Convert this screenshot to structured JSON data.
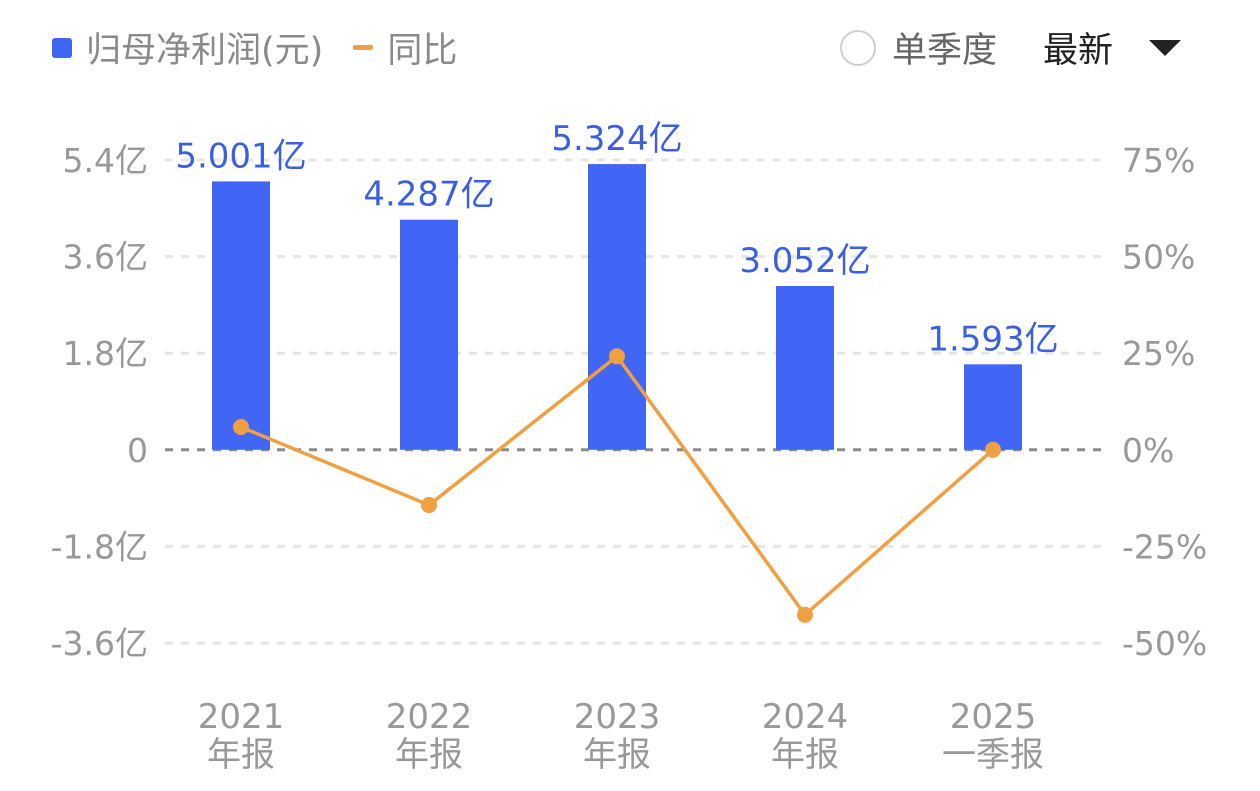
{
  "legend": {
    "bar_label": "归母净利润(元)",
    "line_label": "同比"
  },
  "controls": {
    "single_quarter": "单季度",
    "period": "最新"
  },
  "colors": {
    "bar": "#4166f5",
    "line": "#f0a040",
    "axis_text": "#999999",
    "label": "#3a5fe0"
  },
  "chart_data": {
    "type": "bar+line",
    "categories": [
      [
        "2021",
        "年报"
      ],
      [
        "2022",
        "年报"
      ],
      [
        "2023",
        "年报"
      ],
      [
        "2024",
        "年报"
      ],
      [
        "2025",
        "一季报"
      ]
    ],
    "series": [
      {
        "name": "归母净利润(元)",
        "type": "bar",
        "axis": "left",
        "values": [
          5.001,
          4.287,
          5.324,
          3.052,
          1.593
        ],
        "labels": [
          "5.001亿",
          "4.287亿",
          "5.324亿",
          "3.052亿",
          "1.593亿"
        ]
      },
      {
        "name": "同比",
        "type": "line",
        "axis": "right",
        "values": [
          5.9,
          -14.3,
          24.2,
          -42.7,
          0
        ]
      }
    ],
    "left_axis": {
      "ticks": [
        5.4,
        3.6,
        1.8,
        0,
        -1.8,
        -3.6
      ],
      "tick_labels": [
        "5.4亿",
        "3.6亿",
        "1.8亿",
        "0",
        "-1.8亿",
        "-3.6亿"
      ],
      "range": [
        -3.6,
        5.4
      ]
    },
    "right_axis": {
      "ticks": [
        75,
        50,
        25,
        0,
        -25,
        -50
      ],
      "tick_labels": [
        "75%",
        "50%",
        "25%",
        "0%",
        "-25%",
        "-50%"
      ],
      "range": [
        -50,
        75
      ]
    },
    "grid": true,
    "legend_position": "top-left"
  }
}
